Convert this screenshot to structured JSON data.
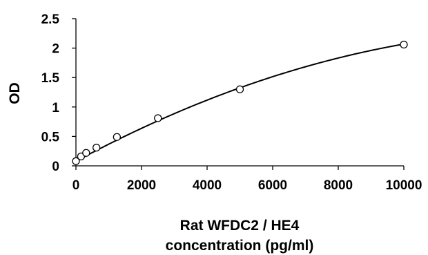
{
  "chart_data": {
    "type": "scatter",
    "xlabel_lines": [
      "Rat WFDC2 / HE4",
      "concentration (pg/ml)"
    ],
    "ylabel": "OD",
    "xlim": [
      0,
      10000
    ],
    "ylim": [
      0,
      2.5
    ],
    "x_ticks": [
      0,
      2000,
      4000,
      6000,
      8000,
      10000
    ],
    "x_tick_labels": [
      "0",
      "2000",
      "4000",
      "6000",
      "8000",
      "10000"
    ],
    "y_ticks": [
      0,
      0.5,
      1,
      1.5,
      2,
      2.5
    ],
    "y_tick_labels": [
      "0",
      "0.5",
      "1",
      "1.5",
      "2",
      "2.5"
    ],
    "grid": false,
    "legend": "none",
    "series": [
      {
        "marker": "open-circle",
        "x": [
          0,
          156,
          312,
          625,
          1250,
          2500,
          5000,
          10000
        ],
        "y": [
          0.08,
          0.16,
          0.22,
          0.31,
          0.49,
          0.81,
          1.3,
          2.06
        ]
      }
    ],
    "trendline": {
      "type": "polynomial-2",
      "coefficients": [
        0.0779,
        0.0003,
        -1.01e-08
      ]
    },
    "colors": {
      "axis": "#000000",
      "line": "#000000",
      "marker_stroke": "#000000",
      "marker_fill": "#ffffff"
    }
  }
}
